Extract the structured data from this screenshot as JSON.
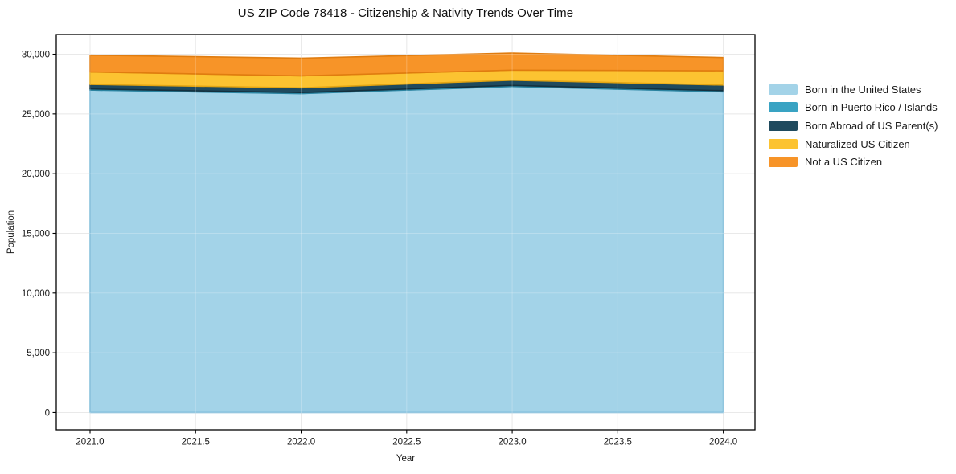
{
  "chart_data": {
    "type": "area",
    "stacked": true,
    "title": "US ZIP Code 78418 - Citizenship & Nativity Trends Over Time",
    "xlabel": "Year",
    "ylabel": "Population",
    "x": [
      2021,
      2022,
      2023,
      2024
    ],
    "series": [
      {
        "name": "Born in the United States",
        "color": "#a3d3e8",
        "edge": "#74b6d6",
        "values": [
          27000,
          26700,
          27300,
          26850
        ]
      },
      {
        "name": "Born in Puerto Rico / Islands",
        "color": "#39a3c3",
        "edge": "#2a83a0",
        "values": [
          100,
          90,
          90,
          100
        ]
      },
      {
        "name": "Born Abroad of US Parent(s)",
        "color": "#1f4a5e",
        "edge": "#13303e",
        "values": [
          370,
          400,
          440,
          470
        ]
      },
      {
        "name": "Naturalized US Citizen",
        "color": "#fcc331",
        "edge": "#e3a512",
        "values": [
          1050,
          1000,
          840,
          1200
        ]
      },
      {
        "name": "Not a US Citizen",
        "color": "#f79428",
        "edge": "#e07c0f",
        "values": [
          1400,
          1480,
          1430,
          1100
        ]
      }
    ],
    "totals_by_year": [
      29920,
      29670,
      30100,
      29720
    ],
    "xticks": {
      "values": [
        2021.0,
        2021.5,
        2022.0,
        2022.5,
        2023.0,
        2023.5,
        2024.0
      ],
      "labels": [
        "2021.0",
        "2021.5",
        "2022.0",
        "2022.5",
        "2023.0",
        "2023.5",
        "2024.0"
      ]
    },
    "yticks": {
      "values": [
        0,
        5000,
        10000,
        15000,
        20000,
        25000,
        30000
      ],
      "labels": [
        "0",
        "5,000",
        "10,000",
        "15,000",
        "20,000",
        "25,000",
        "30,000"
      ]
    },
    "xlim": [
      2020.84,
      2024.15
    ],
    "ylim": [
      -1450,
      31650
    ],
    "grid": true,
    "legend_position": "right"
  }
}
